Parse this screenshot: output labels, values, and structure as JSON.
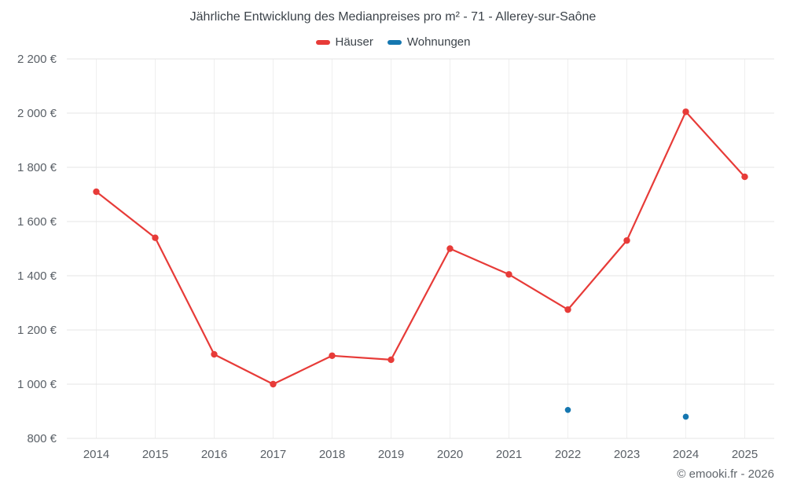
{
  "footer": {
    "credit": "© emooki.fr - 2026"
  },
  "chart_data": {
    "type": "line",
    "title": "Jährliche Entwicklung des Medianpreises pro m² - 71 - Allerey-sur-Saône",
    "categories": [
      "2014",
      "2015",
      "2016",
      "2017",
      "2018",
      "2019",
      "2020",
      "2021",
      "2022",
      "2023",
      "2024",
      "2025"
    ],
    "series": [
      {
        "name": "Häuser",
        "color": "#e73b38",
        "style": "line+markers",
        "values": [
          1710,
          1540,
          1110,
          1000,
          1105,
          1090,
          1500,
          1405,
          1275,
          1530,
          2005,
          1765
        ]
      },
      {
        "name": "Wohnungen",
        "color": "#1577b0",
        "style": "markers",
        "values": [
          null,
          null,
          null,
          null,
          null,
          null,
          null,
          null,
          905,
          null,
          880,
          null
        ]
      }
    ],
    "xlabel": "",
    "ylabel": "",
    "ylim": [
      800,
      2200
    ],
    "ytick_step": 200,
    "yticks": [
      800,
      1000,
      1200,
      1400,
      1600,
      1800,
      2000,
      2200
    ],
    "ytick_labels": [
      "800 €",
      "1 000 €",
      "1 200 €",
      "1 400 €",
      "1 600 €",
      "1 800 €",
      "2 000 €",
      "2 200 €"
    ],
    "grid": true,
    "legend_position": "top"
  }
}
